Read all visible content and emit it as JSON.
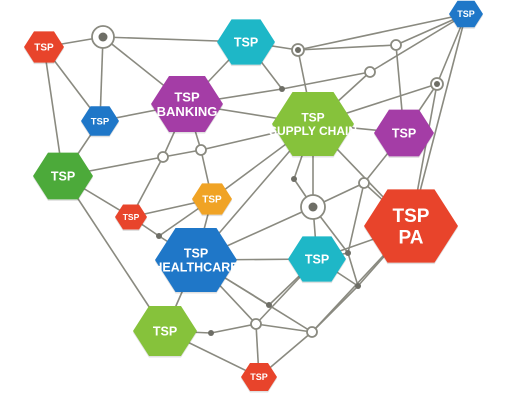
{
  "diagram": {
    "edge_color": "#8a8a80",
    "joint_fill": "#ffffff",
    "dot_fill": "#6e6e66",
    "nodes": [
      {
        "id": "tsp-top-left-red",
        "lines": [
          "TSP"
        ],
        "color": "#e8442b"
      },
      {
        "id": "tsp-top-left-blue",
        "lines": [
          "TSP"
        ],
        "color": "#1f77c8"
      },
      {
        "id": "tsp-top-teal",
        "lines": [
          "TSP"
        ],
        "color": "#1eb7c7"
      },
      {
        "id": "tsp-top-right-blue",
        "lines": [
          "TSP"
        ],
        "color": "#1f77c8"
      },
      {
        "id": "tsp-banking",
        "lines": [
          "TSP",
          "BANKING"
        ],
        "color": "#a43da6"
      },
      {
        "id": "tsp-supply-chain",
        "lines": [
          "TSP",
          "SUPPLY CHAIN"
        ],
        "color": "#86c23b"
      },
      {
        "id": "tsp-right-purple",
        "lines": [
          "TSP"
        ],
        "color": "#a43da6"
      },
      {
        "id": "tsp-left-green",
        "lines": [
          "TSP"
        ],
        "color": "#4caa3a"
      },
      {
        "id": "tsp-small-orange",
        "lines": [
          "TSP"
        ],
        "color": "#f0a325"
      },
      {
        "id": "tsp-small-red",
        "lines": [
          "TSP"
        ],
        "color": "#e8442b"
      },
      {
        "id": "tsp-pa",
        "lines": [
          "TSP",
          "PA"
        ],
        "color": "#e8442b"
      },
      {
        "id": "tsp-healthcare",
        "lines": [
          "TSP",
          "HEALTHCARE"
        ],
        "color": "#1f77c8"
      },
      {
        "id": "tsp-mid-teal",
        "lines": [
          "TSP"
        ],
        "color": "#1eb7c7"
      },
      {
        "id": "tsp-bottom-green",
        "lines": [
          "TSP"
        ],
        "color": "#86c23b"
      },
      {
        "id": "tsp-bottom-red",
        "lines": [
          "TSP"
        ],
        "color": "#e8442b"
      }
    ]
  }
}
